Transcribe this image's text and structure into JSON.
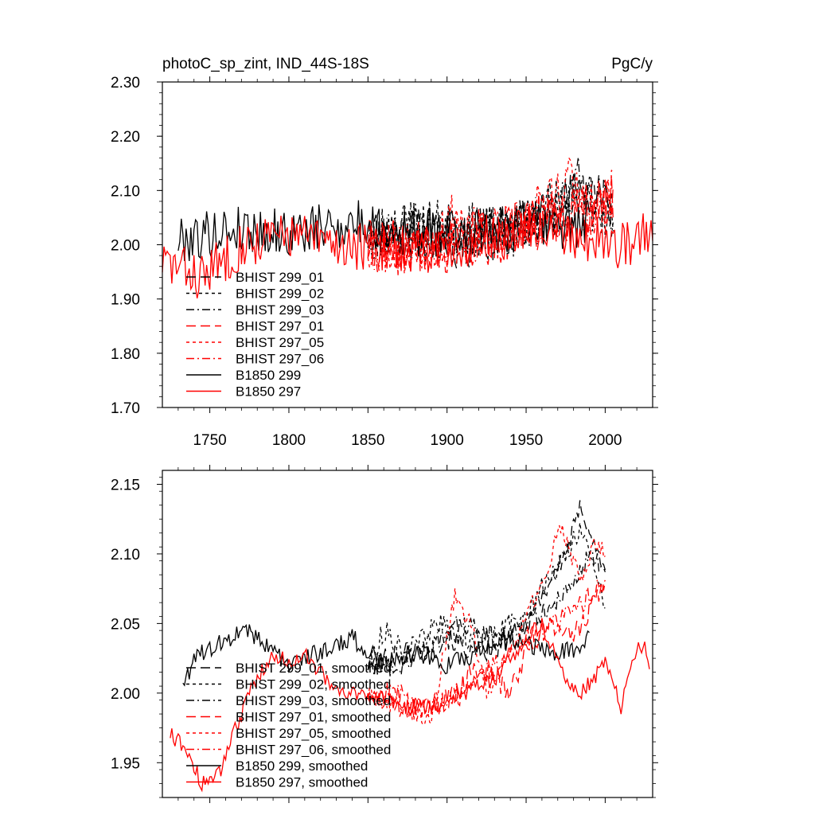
{
  "chart_data": [
    {
      "type": "line",
      "title": "photoC_sp_zint, IND_44S-18S",
      "units": "PgC/y",
      "xlabel": "",
      "ylabel": "",
      "xlim": [
        1720,
        2030
      ],
      "ylim": [
        1.7,
        2.3
      ],
      "xticks": [
        1750,
        1800,
        1850,
        1900,
        1950,
        2000
      ],
      "xtick_labels": [
        "1750",
        "1800",
        "1850",
        "1900",
        "1950",
        "2000"
      ],
      "yticks": [
        1.7,
        1.8,
        1.9,
        2.0,
        2.1,
        2.2,
        2.3
      ],
      "ytick_labels": [
        "1.70",
        "1.80",
        "1.90",
        "2.00",
        "2.10",
        "2.20",
        "2.30"
      ],
      "legend": "lower-left",
      "series": [
        {
          "name": "BHIST 299_01",
          "color": "#000000",
          "dash": "longdash",
          "x_start": 1850,
          "x_end": 2005,
          "anchors": [
            [
              1850,
              2.02
            ],
            [
              1880,
              2.02
            ],
            [
              1910,
              2.0
            ],
            [
              1940,
              2.03
            ],
            [
              1960,
              2.05
            ],
            [
              1980,
              2.09
            ],
            [
              1990,
              2.11
            ],
            [
              2005,
              2.07
            ]
          ],
          "noise": 0.05,
          "seed": 11
        },
        {
          "name": "BHIST 299_02",
          "color": "#000000",
          "dash": "shortdash",
          "x_start": 1850,
          "x_end": 2005,
          "anchors": [
            [
              1850,
              2.02
            ],
            [
              1880,
              2.04
            ],
            [
              1910,
              2.03
            ],
            [
              1940,
              2.02
            ],
            [
              1960,
              2.06
            ],
            [
              1985,
              2.08
            ],
            [
              2005,
              2.05
            ]
          ],
          "noise": 0.05,
          "seed": 23
        },
        {
          "name": "BHIST 299_03",
          "color": "#000000",
          "dash": "dashdot",
          "x_start": 1850,
          "x_end": 2005,
          "anchors": [
            [
              1850,
              2.02
            ],
            [
              1880,
              2.03
            ],
            [
              1910,
              2.02
            ],
            [
              1940,
              2.03
            ],
            [
              1960,
              2.05
            ],
            [
              1985,
              2.12
            ],
            [
              2005,
              2.06
            ]
          ],
          "noise": 0.05,
          "seed": 37
        },
        {
          "name": "BHIST 297_01",
          "color": "#ff0000",
          "dash": "longdash",
          "x_start": 1850,
          "x_end": 2005,
          "anchors": [
            [
              1850,
              2.0
            ],
            [
              1880,
              1.99
            ],
            [
              1910,
              2.0
            ],
            [
              1940,
              2.02
            ],
            [
              1960,
              2.04
            ],
            [
              1985,
              2.06
            ],
            [
              2005,
              2.08
            ]
          ],
          "noise": 0.05,
          "seed": 41
        },
        {
          "name": "BHIST 297_05",
          "color": "#ff0000",
          "dash": "shortdash",
          "x_start": 1850,
          "x_end": 2005,
          "anchors": [
            [
              1850,
              2.0
            ],
            [
              1880,
              1.99
            ],
            [
              1905,
              2.06
            ],
            [
              1925,
              2.0
            ],
            [
              1960,
              2.07
            ],
            [
              1978,
              2.12
            ],
            [
              1990,
              2.07
            ],
            [
              2005,
              2.1
            ]
          ],
          "noise": 0.05,
          "seed": 53
        },
        {
          "name": "BHIST 297_06",
          "color": "#ff0000",
          "dash": "dashdot",
          "x_start": 1850,
          "x_end": 2005,
          "anchors": [
            [
              1850,
              2.0
            ],
            [
              1880,
              2.0
            ],
            [
              1910,
              2.01
            ],
            [
              1940,
              2.03
            ],
            [
              1960,
              2.05
            ],
            [
              1985,
              2.06
            ],
            [
              2005,
              2.07
            ]
          ],
          "noise": 0.05,
          "seed": 67
        },
        {
          "name": "B1850 299",
          "color": "#000000",
          "dash": "solid",
          "x_start": 1730,
          "x_end": 1990,
          "anchors": [
            [
              1730,
              2.01
            ],
            [
              1770,
              2.03
            ],
            [
              1800,
              2.02
            ],
            [
              1840,
              2.04
            ],
            [
              1880,
              2.02
            ],
            [
              1930,
              2.03
            ],
            [
              1960,
              2.03
            ],
            [
              1990,
              2.04
            ]
          ],
          "noise": 0.045,
          "seed": 79
        },
        {
          "name": "B1850 297",
          "color": "#ff0000",
          "dash": "solid",
          "x_start": 1720,
          "x_end": 2030,
          "anchors": [
            [
              1720,
              1.97
            ],
            [
              1745,
              1.94
            ],
            [
              1770,
              2.0
            ],
            [
              1800,
              2.02
            ],
            [
              1830,
              2.0
            ],
            [
              1880,
              1.99
            ],
            [
              1920,
              2.0
            ],
            [
              1960,
              2.04
            ],
            [
              1990,
              2.01
            ],
            [
              2010,
              2.0
            ],
            [
              2030,
              2.02
            ]
          ],
          "noise": 0.045,
          "seed": 83
        }
      ]
    },
    {
      "type": "line",
      "title": "",
      "xlabel": "",
      "ylabel": "",
      "xlim": [
        1720,
        2030
      ],
      "ylim": [
        1.925,
        2.16
      ],
      "xticks": [
        1750,
        1800,
        1850,
        1900,
        1950,
        2000
      ],
      "yticks": [
        1.95,
        2.0,
        2.05,
        2.1,
        2.15
      ],
      "ytick_labels": [
        "1.95",
        "2.00",
        "2.05",
        "2.10",
        "2.15"
      ],
      "legend": "lower-left",
      "series": [
        {
          "name": "BHIST 299_01, smoothed",
          "color": "#000000",
          "dash": "longdash",
          "x_start": 1850,
          "x_end": 2000,
          "anchors": [
            [
              1850,
              2.02
            ],
            [
              1870,
              2.03
            ],
            [
              1890,
              2.03
            ],
            [
              1900,
              2.04
            ],
            [
              1915,
              2.03
            ],
            [
              1930,
              2.03
            ],
            [
              1950,
              2.05
            ],
            [
              1960,
              2.07
            ],
            [
              1975,
              2.1
            ],
            [
              1985,
              2.135
            ],
            [
              1995,
              2.1
            ],
            [
              2000,
              2.09
            ]
          ],
          "noise": 0.008,
          "seed": 101
        },
        {
          "name": "BHIST 299_02, smoothed",
          "color": "#000000",
          "dash": "shortdash",
          "x_start": 1850,
          "x_end": 2000,
          "anchors": [
            [
              1850,
              2.02
            ],
            [
              1860,
              2.045
            ],
            [
              1875,
              2.03
            ],
            [
              1895,
              2.05
            ],
            [
              1910,
              2.04
            ],
            [
              1930,
              2.04
            ],
            [
              1950,
              2.06
            ],
            [
              1970,
              2.09
            ],
            [
              1985,
              2.12
            ],
            [
              2000,
              2.06
            ]
          ],
          "noise": 0.008,
          "seed": 113
        },
        {
          "name": "BHIST 299_03, smoothed",
          "color": "#000000",
          "dash": "dashdot",
          "x_start": 1850,
          "x_end": 2000,
          "anchors": [
            [
              1850,
              2.02
            ],
            [
              1870,
              2.02
            ],
            [
              1895,
              2.04
            ],
            [
              1910,
              2.05
            ],
            [
              1930,
              2.04
            ],
            [
              1950,
              2.05
            ],
            [
              1965,
              2.06
            ],
            [
              1980,
              2.08
            ],
            [
              1990,
              2.1
            ],
            [
              2000,
              2.09
            ]
          ],
          "noise": 0.008,
          "seed": 127
        },
        {
          "name": "BHIST 297_01, smoothed",
          "color": "#ff0000",
          "dash": "longdash",
          "x_start": 1850,
          "x_end": 2000,
          "anchors": [
            [
              1850,
              2.0
            ],
            [
              1870,
              1.99
            ],
            [
              1890,
              1.99
            ],
            [
              1905,
              2.0
            ],
            [
              1920,
              2.02
            ],
            [
              1940,
              2.0
            ],
            [
              1950,
              2.03
            ],
            [
              1965,
              2.05
            ],
            [
              1980,
              2.04
            ],
            [
              1990,
              2.06
            ],
            [
              2000,
              2.08
            ]
          ],
          "noise": 0.008,
          "seed": 131
        },
        {
          "name": "BHIST 297_05, smoothed",
          "color": "#ff0000",
          "dash": "shortdash",
          "x_start": 1850,
          "x_end": 2000,
          "anchors": [
            [
              1850,
              2.0
            ],
            [
              1870,
              1.99
            ],
            [
              1890,
              1.98
            ],
            [
              1905,
              2.07
            ],
            [
              1915,
              2.05
            ],
            [
              1925,
              2.0
            ],
            [
              1945,
              2.04
            ],
            [
              1960,
              2.08
            ],
            [
              1972,
              2.12
            ],
            [
              1985,
              2.08
            ],
            [
              1995,
              2.11
            ],
            [
              2000,
              2.1
            ]
          ],
          "noise": 0.007,
          "seed": 149
        },
        {
          "name": "BHIST 297_06, smoothed",
          "color": "#ff0000",
          "dash": "dashdot",
          "x_start": 1850,
          "x_end": 2000,
          "anchors": [
            [
              1850,
              2.0
            ],
            [
              1870,
              2.0
            ],
            [
              1890,
              1.99
            ],
            [
              1910,
              2.0
            ],
            [
              1930,
              2.02
            ],
            [
              1950,
              2.04
            ],
            [
              1970,
              2.05
            ],
            [
              1990,
              2.07
            ],
            [
              2000,
              2.08
            ]
          ],
          "noise": 0.008,
          "seed": 157
        },
        {
          "name": "B1850 299, smoothed",
          "color": "#000000",
          "dash": "solid",
          "x_start": 1733,
          "x_end": 1990,
          "anchors": [
            [
              1733,
              2.01
            ],
            [
              1745,
              2.03
            ],
            [
              1765,
              2.04
            ],
            [
              1770,
              2.05
            ],
            [
              1790,
              2.03
            ],
            [
              1800,
              2.02
            ],
            [
              1820,
              2.03
            ],
            [
              1840,
              2.04
            ],
            [
              1860,
              2.02
            ],
            [
              1880,
              2.03
            ],
            [
              1900,
              2.02
            ],
            [
              1920,
              2.03
            ],
            [
              1940,
              2.04
            ],
            [
              1960,
              2.03
            ],
            [
              1980,
              2.03
            ],
            [
              1990,
              2.04
            ]
          ],
          "noise": 0.007,
          "seed": 163
        },
        {
          "name": "B1850 297, smoothed",
          "color": "#ff0000",
          "dash": "solid",
          "x_start": 1725,
          "x_end": 2028,
          "anchors": [
            [
              1725,
              1.97
            ],
            [
              1735,
              1.96
            ],
            [
              1745,
              1.935
            ],
            [
              1755,
              1.94
            ],
            [
              1765,
              1.97
            ],
            [
              1775,
              2.0
            ],
            [
              1790,
              2.03
            ],
            [
              1800,
              2.02
            ],
            [
              1810,
              2.03
            ],
            [
              1830,
              2.0
            ],
            [
              1850,
              2.0
            ],
            [
              1870,
              1.99
            ],
            [
              1890,
              1.99
            ],
            [
              1910,
              2.0
            ],
            [
              1930,
              2.01
            ],
            [
              1950,
              2.04
            ],
            [
              1960,
              2.05
            ],
            [
              1975,
              2.01
            ],
            [
              1985,
              2.0
            ],
            [
              2000,
              2.02
            ],
            [
              2010,
              1.99
            ],
            [
              2020,
              2.03
            ],
            [
              2025,
              2.036
            ],
            [
              2028,
              2.02
            ]
          ],
          "noise": 0.006,
          "seed": 173
        }
      ]
    }
  ]
}
